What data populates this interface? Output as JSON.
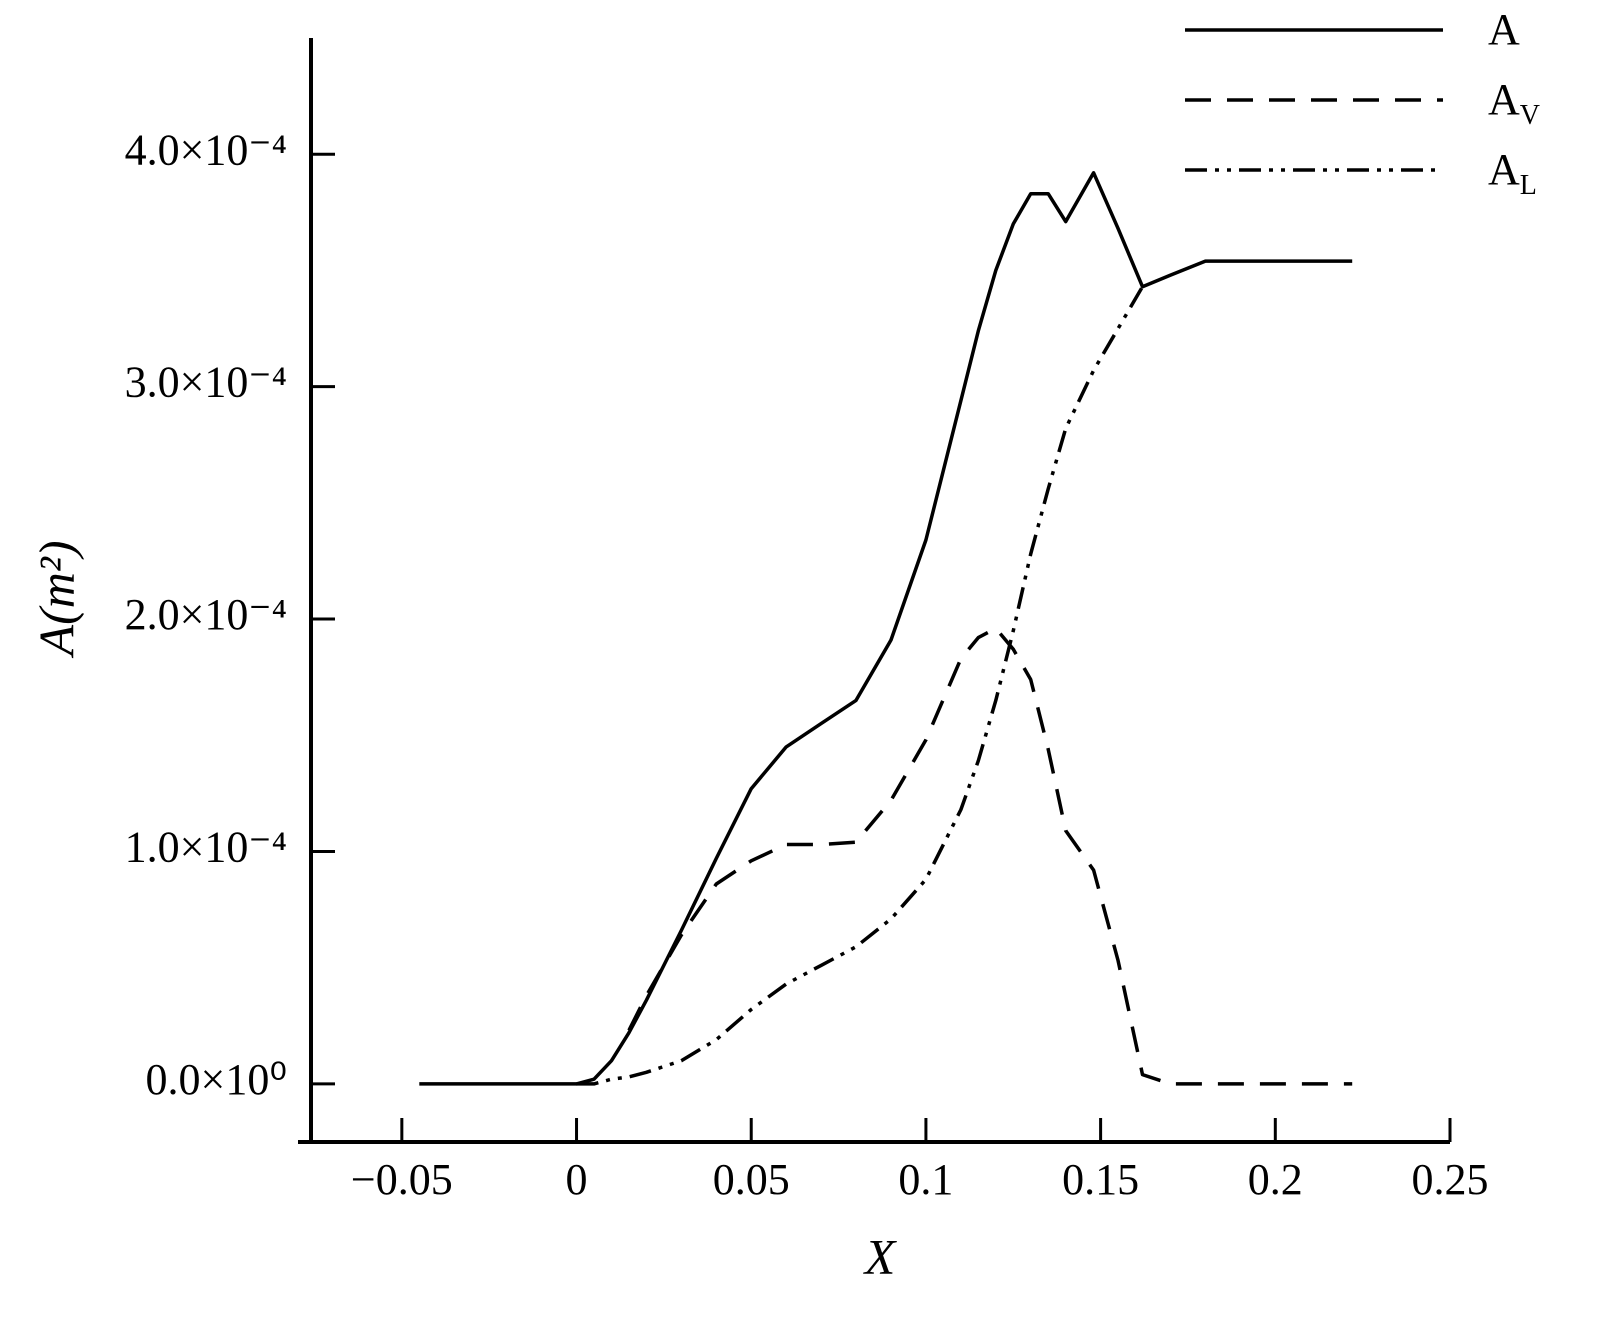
{
  "chart_data": {
    "type": "line",
    "x_label": "X",
    "y_label": "A(m²)",
    "x": [
      -0.045,
      0,
      0.005,
      0.01,
      0.015,
      0.02,
      0.03,
      0.04,
      0.05,
      0.06,
      0.07,
      0.08,
      0.09,
      0.1,
      0.11,
      0.115,
      0.12,
      0.125,
      0.13,
      0.135,
      0.14,
      0.148,
      0.155,
      0.162,
      0.17,
      0.18,
      0.222
    ],
    "series": [
      {
        "name": "A",
        "color": "#000000",
        "dash": "solid",
        "values": [
          0,
          0,
          2e-06,
          1e-05,
          2.2e-05,
          3.6e-05,
          6.6e-05,
          9.7e-05,
          0.000127,
          0.000145,
          0.000155,
          0.000165,
          0.000191,
          0.000234,
          0.000294,
          0.000324,
          0.00035,
          0.00037,
          0.000383,
          0.000383,
          0.000371,
          0.000392,
          0.000368,
          0.000343,
          0.000348,
          0.000354,
          0.000354
        ]
      },
      {
        "name": "AV",
        "color": "#000000",
        "dash": "dashed",
        "values": [
          null,
          null,
          null,
          null,
          2.3e-05,
          3.8e-05,
          6.4e-05,
          8.6e-05,
          9.6e-05,
          0.000103,
          0.000103,
          0.000104,
          0.000122,
          0.000148,
          0.000183,
          0.000192,
          0.000196,
          0.000187,
          0.000174,
          0.000144,
          0.000109,
          9.2e-05,
          5.3e-05,
          4e-06,
          0,
          0,
          0
        ]
      },
      {
        "name": "AL",
        "color": "#000000",
        "dash": "dash-dot-dot",
        "values": [
          null,
          0,
          0,
          2e-06,
          3e-06,
          5e-06,
          1e-05,
          1.9e-05,
          3.2e-05,
          4.3e-05,
          5.1e-05,
          5.9e-05,
          7.1e-05,
          8.8e-05,
          0.000118,
          0.000139,
          0.000165,
          0.000195,
          0.000228,
          0.000256,
          0.000282,
          0.000307,
          0.000325,
          0.000343,
          null,
          null,
          null
        ]
      }
    ],
    "xlim": [
      -0.076,
      0.25
    ],
    "xticks": [
      {
        "value": -0.05,
        "label": "−0.05"
      },
      0,
      0.05,
      0.1,
      0.15,
      0.2,
      0.25
    ],
    "ylim": [
      -2.5e-05,
      0.00045
    ],
    "yticks": [
      {
        "value": 0,
        "label": "0.0×10⁰"
      },
      {
        "value": 0.0001,
        "label": "1.0×10⁻⁴"
      },
      {
        "value": 0.0002,
        "label": "2.0×10⁻⁴"
      },
      {
        "value": 0.0003,
        "label": "3.0×10⁻⁴"
      },
      {
        "value": 0.0004,
        "label": "4.0×10⁻⁴"
      }
    ],
    "grid": false,
    "legend": "upper right"
  }
}
